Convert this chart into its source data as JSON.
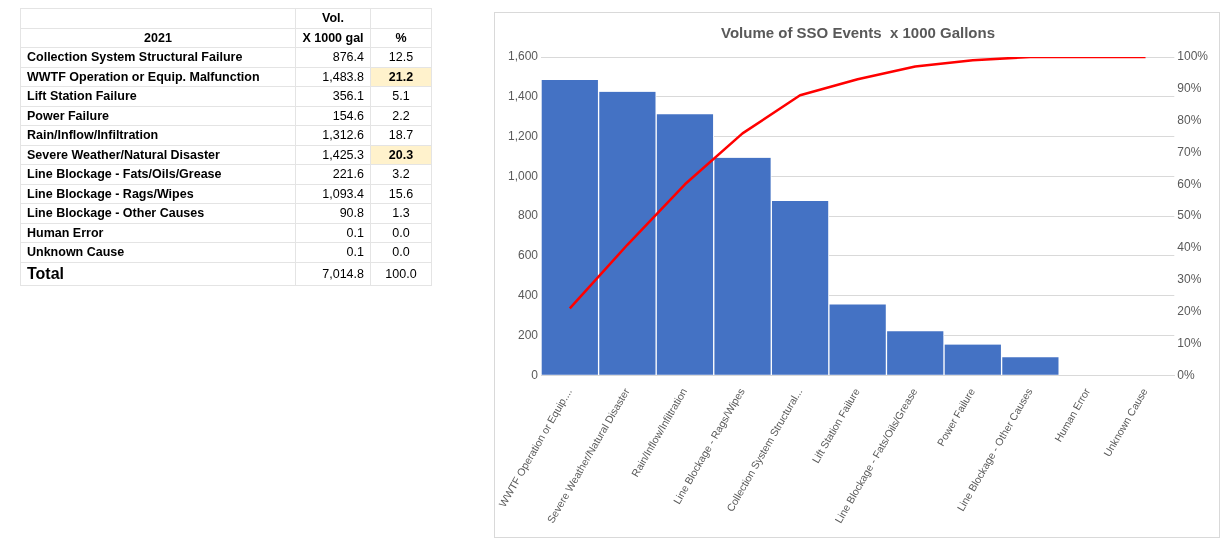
{
  "chart_data": [
    {
      "type": "other",
      "title": "2021",
      "categories": [
        "Collection System Structural Failure",
        "WWTF Operation or Equip. Malfunction",
        "Lift Station Failure",
        "Power Failure",
        "Rain/Inflow/Infiltration",
        "Severe Weather/Natural Disaster",
        "Line Blockage - Fats/Oils/Grease",
        "Line Blockage - Rags/Wipes",
        "Line Blockage - Other Causes",
        "Human Error",
        "Unknown Cause",
        "Total"
      ],
      "series": [
        {
          "name": "Vol.\nX 1000 gal",
          "values": [
            876.4,
            1483.8,
            356.1,
            154.6,
            1312.6,
            1425.3,
            221.6,
            1093.4,
            90.8,
            0.1,
            0.1,
            7014.8
          ],
          "value_labels": [
            "876.4",
            "1,483.8",
            "356.1",
            "154.6",
            "1,312.6",
            "1,425.3",
            "221.6",
            "1,093.4",
            "90.8",
            "0.1",
            "0.1",
            "7,014.8"
          ]
        },
        {
          "name": "%",
          "values": [
            12.5,
            21.2,
            5.1,
            2.2,
            18.7,
            20.3,
            3.2,
            15.6,
            1.3,
            0.0,
            0.0,
            100.0
          ],
          "value_labels": [
            "12.5",
            "21.2",
            "5.1",
            "2.2",
            "18.7",
            "20.3",
            "3.2",
            "15.6",
            "1.3",
            "0.0",
            "0.0",
            "100.0"
          ],
          "colors": [
            "#ffffff",
            "#fff2cc",
            "#ffffff",
            "#ffffff",
            "#ffffff",
            "#fff2cc",
            "#ffffff",
            "#ffffff",
            "#ffffff",
            "#ffffff",
            "#ffffff",
            "#ffffff"
          ]
        }
      ]
    },
    {
      "type": "bar",
      "title": "Volume of SSO Events  x 1000 Gallons",
      "categories": [
        "WWTF Operation or Equip....",
        "Severe Weather/Natural Disaster",
        "Rain/Inflow/Infiltration",
        "Line Blockage - Rags/Wipes",
        "Collection System Structural...",
        "Lift Station Failure",
        "Line Blockage - Fats/Oils/Grease",
        "Power Failure",
        "Line Blockage - Other Causes",
        "Human Error",
        "Unknown Cause"
      ],
      "series": [
        {
          "type": "bar",
          "color": "#4472c4",
          "values": [
            1483.8,
            1425.3,
            1312.6,
            1093.4,
            876.4,
            356.1,
            221.6,
            154.6,
            90.8,
            null,
            null
          ]
        },
        {
          "type": "line",
          "axis": "y2",
          "color": "#ff0000",
          "values": [
            21,
            41,
            60,
            76,
            88,
            93,
            97,
            99,
            100,
            100,
            100
          ]
        }
      ],
      "ylim": [
        0,
        1600
      ],
      "yticks": [
        {
          "value": 0,
          "label": "0"
        },
        {
          "value": 200,
          "label": "200"
        },
        {
          "value": 400,
          "label": "400"
        },
        {
          "value": 600,
          "label": "600"
        },
        {
          "value": 800,
          "label": "800"
        },
        {
          "value": 1000,
          "label": "1,000"
        },
        {
          "value": 1200,
          "label": "1,200"
        },
        {
          "value": 1400,
          "label": "1,400"
        },
        {
          "value": 1600,
          "label": "1,600"
        }
      ],
      "y2lim": [
        0,
        100
      ],
      "y2ticks": [
        {
          "value": 0,
          "label": "0%"
        },
        {
          "value": 10,
          "label": "10%"
        },
        {
          "value": 20,
          "label": "20%"
        },
        {
          "value": 30,
          "label": "30%"
        },
        {
          "value": 40,
          "label": "40%"
        },
        {
          "value": 50,
          "label": "50%"
        },
        {
          "value": 60,
          "label": "60%"
        },
        {
          "value": 70,
          "label": "70%"
        },
        {
          "value": 80,
          "label": "80%"
        },
        {
          "value": 90,
          "label": "90%"
        },
        {
          "value": 100,
          "label": "100%"
        }
      ],
      "grid": "y",
      "marker": "none"
    }
  ]
}
